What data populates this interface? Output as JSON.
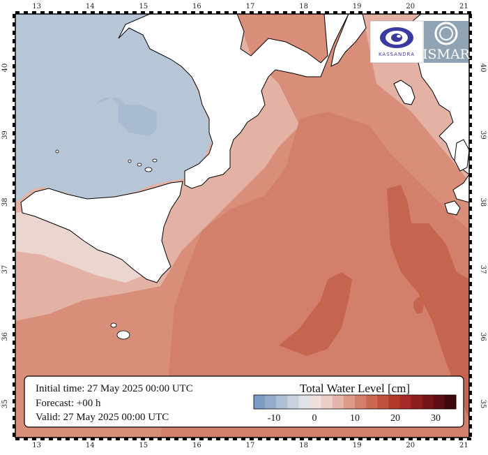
{
  "map": {
    "lon_ticks": [
      "13",
      "14",
      "15",
      "16",
      "17",
      "18",
      "19",
      "20",
      "21"
    ],
    "lat_ticks": [
      "35",
      "36",
      "37",
      "38",
      "39",
      "40"
    ],
    "lon_range": [
      12.6,
      21.1
    ],
    "lat_range": [
      34.5,
      40.8
    ]
  },
  "info_box": {
    "initial_time": "Initial time: 27 May 2025 00:00 UTC",
    "forecast": "Forecast: +00 h",
    "valid": "Valid: 27 May 2025 00:00 UTC"
  },
  "colorbar": {
    "title": "Total Water Level [cm]",
    "tick_labels": [
      "-10",
      "0",
      "10",
      "20",
      "30"
    ],
    "tick_values": [
      -10,
      0,
      10,
      20,
      30
    ],
    "range": [
      -15,
      35
    ],
    "colors": [
      "#7a9cc4",
      "#94acc9",
      "#adbfd4",
      "#c7d2de",
      "#dfe3e8",
      "#ecdfdc",
      "#ebcfc7",
      "#e4b6a9",
      "#dd9c8a",
      "#d3816d",
      "#c96952",
      "#c0533c",
      "#b23a2b",
      "#a62a25",
      "#8f1e1f",
      "#751519",
      "#5c0e13",
      "#3d070c"
    ]
  },
  "logos": {
    "left_text": "KASSANDRA",
    "right_text": "ISMAR"
  },
  "colors": {
    "land": "#ffffff",
    "sea_negative": "#b6c5d6",
    "sea_low": "#e6b9ad",
    "sea_mid": "#dc9c88",
    "sea_high": "#cd7560",
    "sea_peak": "#c2604b"
  }
}
